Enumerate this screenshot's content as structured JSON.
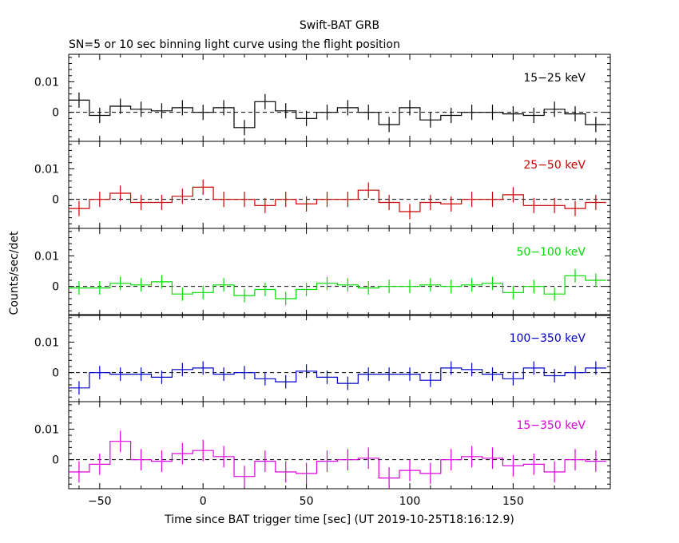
{
  "title": "Swift-BAT GRB",
  "subtitle": "SN=5 or 10 sec binning light curve using the flight position",
  "ylabel": "Counts/sec/det",
  "xlabel": "Time since BAT trigger time [sec] (UT 2019-10-25T18:16:12.9)",
  "colors": {
    "band_15_25": "#000000",
    "band_25_50": "#cc0000",
    "band_50_100": "#00dd00",
    "band_100_350": "#0000cc",
    "band_15_350": "#dd00dd"
  },
  "chart_data": {
    "type": "line",
    "style": "step with error bars",
    "xlim": [
      -65,
      197
    ],
    "ylim": [
      -0.0095,
      0.019
    ],
    "x_ticks": [
      -50,
      0,
      50,
      100,
      150
    ],
    "x_tick_labels": [
      "−50",
      "0",
      "50",
      "100",
      "150"
    ],
    "y_ticks": [
      0,
      0.01
    ],
    "y_tick_labels": [
      "0",
      "0.01"
    ],
    "reference_line": 0,
    "bin_edges": [
      -65,
      -55,
      -45,
      -35,
      -25,
      -15,
      -5,
      5,
      15,
      25,
      35,
      45,
      55,
      65,
      75,
      85,
      95,
      105,
      115,
      125,
      135,
      145,
      155,
      165,
      175,
      185,
      195
    ],
    "bin_centers": [
      -60,
      -50,
      -40,
      -30,
      -20,
      -10,
      0,
      10,
      20,
      30,
      40,
      50,
      60,
      70,
      80,
      90,
      100,
      110,
      120,
      130,
      140,
      150,
      160,
      170,
      180,
      190
    ],
    "series": [
      {
        "name": "15−25 keV",
        "values": [
          0.004,
          -0.001,
          0.002,
          0.001,
          0.0005,
          0.0015,
          0,
          0.0015,
          -0.005,
          0.0035,
          0.0005,
          -0.002,
          0,
          0.0015,
          0,
          -0.004,
          0.0015,
          -0.0025,
          -0.001,
          0,
          0,
          -0.0005,
          -0.001,
          0.001,
          -0.0005,
          -0.004
        ],
        "errors": [
          0.0025,
          0.0025,
          0.0025,
          0.0025,
          0.0025,
          0.0025,
          0.0025,
          0.0025,
          0.0025,
          0.0025,
          0.0025,
          0.0025,
          0.0025,
          0.0025,
          0.0025,
          0.0025,
          0.0025,
          0.0025,
          0.0025,
          0.0025,
          0.0025,
          0.0025,
          0.0025,
          0.0025,
          0.0025,
          0.0025
        ]
      },
      {
        "name": "25−50 keV",
        "values": [
          -0.003,
          0,
          0.002,
          -0.001,
          -0.001,
          0.001,
          0.004,
          0,
          0,
          -0.002,
          0,
          -0.0015,
          0,
          0,
          0.003,
          -0.001,
          -0.004,
          -0.001,
          -0.0015,
          0,
          0,
          0.0015,
          -0.002,
          -0.002,
          -0.003,
          -0.001
        ],
        "errors": [
          0.0025,
          0.0025,
          0.0025,
          0.0025,
          0.0025,
          0.0025,
          0.0025,
          0.0025,
          0.0025,
          0.0025,
          0.0025,
          0.0025,
          0.0025,
          0.0025,
          0.0025,
          0.0025,
          0.0025,
          0.0025,
          0.0025,
          0.0025,
          0.0025,
          0.0025,
          0.0025,
          0.0025,
          0.0025,
          0.0025
        ]
      },
      {
        "name": "50−100 keV",
        "values": [
          -0.0005,
          -0.0005,
          0.001,
          0.0005,
          0.0015,
          -0.0025,
          -0.002,
          0.0005,
          -0.003,
          -0.001,
          -0.004,
          -0.001,
          0.001,
          0.0005,
          -0.0005,
          0,
          0,
          0.0005,
          0,
          0.0005,
          0.001,
          -0.002,
          0,
          -0.0025,
          0.0035,
          0.002
        ],
        "errors": [
          0.0022,
          0.0022,
          0.0022,
          0.0022,
          0.0022,
          0.0022,
          0.0022,
          0.0022,
          0.0022,
          0.0022,
          0.0022,
          0.0022,
          0.0022,
          0.0022,
          0.0022,
          0.0022,
          0.0022,
          0.0022,
          0.0022,
          0.0022,
          0.0022,
          0.0022,
          0.0022,
          0.0022,
          0.0022,
          0.0022
        ]
      },
      {
        "name": "100−350 keV",
        "values": [
          -0.005,
          0,
          -0.0005,
          -0.0005,
          -0.0015,
          0.001,
          0.0015,
          -0.0005,
          0,
          -0.002,
          -0.003,
          0.0005,
          -0.0015,
          -0.0035,
          -0.0005,
          -0.0005,
          -0.0005,
          -0.0025,
          0.0015,
          0.001,
          -0.0005,
          -0.002,
          0.0015,
          -0.001,
          0,
          0.0015
        ],
        "errors": [
          0.0022,
          0.0022,
          0.0022,
          0.0022,
          0.0022,
          0.0022,
          0.0022,
          0.0022,
          0.0022,
          0.0022,
          0.0022,
          0.0022,
          0.0022,
          0.0022,
          0.0022,
          0.0022,
          0.0022,
          0.0022,
          0.0022,
          0.0022,
          0.0022,
          0.0022,
          0.0022,
          0.0022,
          0.0022,
          0.0022
        ]
      },
      {
        "name": "15−350 keV",
        "values": [
          -0.004,
          -0.0015,
          0.006,
          0,
          -0.0005,
          0.002,
          0.003,
          0.001,
          -0.0055,
          -0.0005,
          -0.004,
          -0.0045,
          -0.0005,
          0,
          0.0005,
          -0.006,
          -0.0035,
          -0.0045,
          0,
          0.001,
          0.0005,
          -0.002,
          -0.0015,
          -0.004,
          0,
          -0.0005
        ],
        "errors": [
          0.0035,
          0.0035,
          0.0035,
          0.0035,
          0.0035,
          0.0035,
          0.0035,
          0.0035,
          0.0035,
          0.0035,
          0.0035,
          0.0035,
          0.0035,
          0.0035,
          0.0035,
          0.0035,
          0.0035,
          0.0035,
          0.0035,
          0.0035,
          0.0035,
          0.0035,
          0.0035,
          0.0035,
          0.0035,
          0.0035
        ]
      }
    ]
  }
}
